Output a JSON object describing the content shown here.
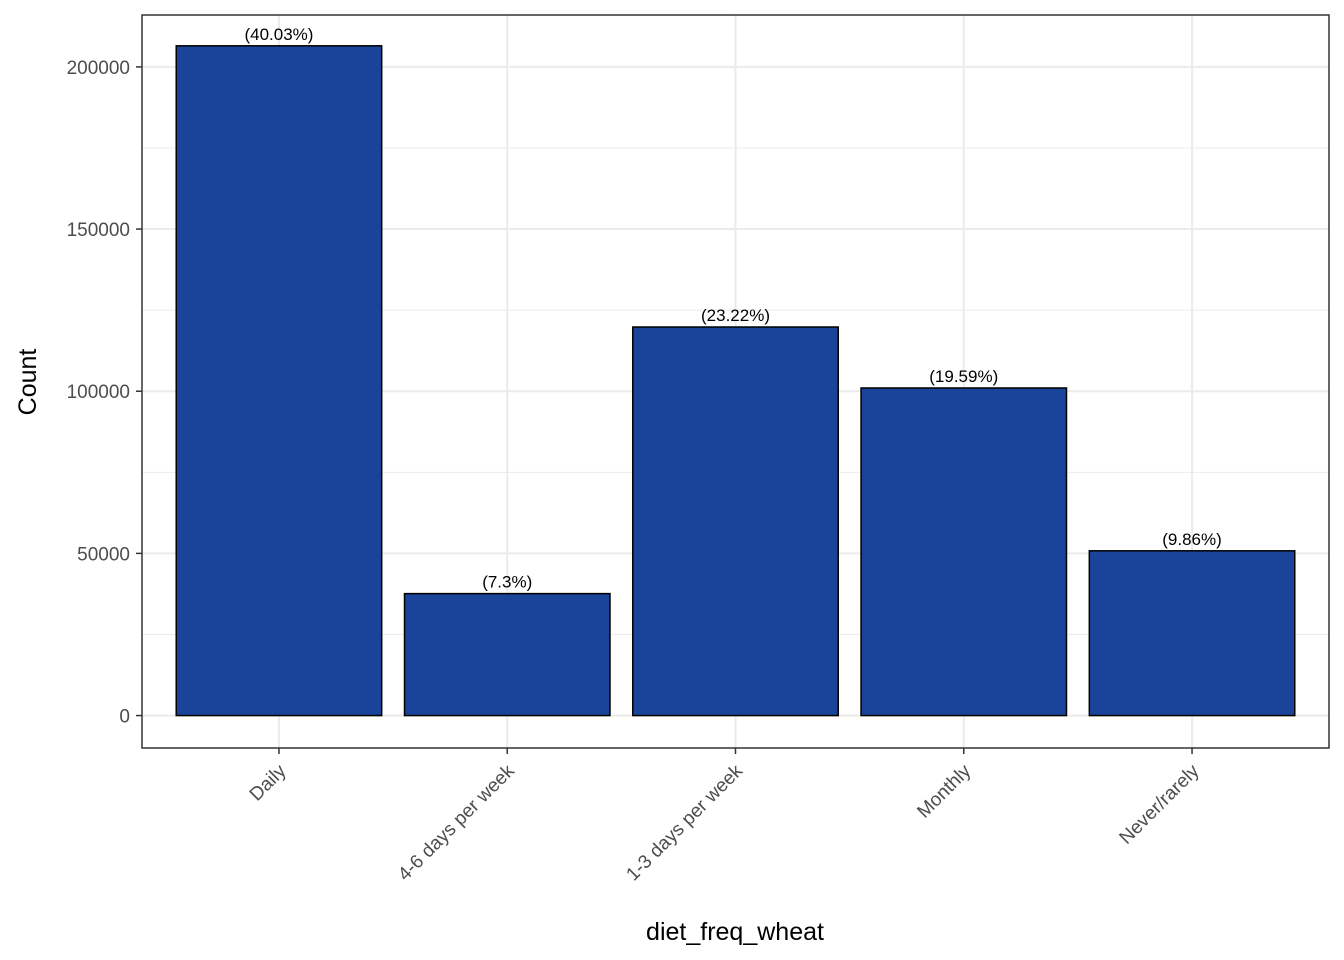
{
  "chart_data": {
    "type": "bar",
    "xlabel": "diet_freq_wheat",
    "ylabel": "Count",
    "categories": [
      "Daily",
      "4-6 days per week",
      "1-3 days per week",
      "Monthly",
      "Never/rarely"
    ],
    "values": [
      206500,
      37600,
      119800,
      101000,
      50800
    ],
    "labels": [
      "(40.03%)",
      "(7.3%)",
      "(23.22%)",
      "(19.59%)",
      "(9.86%)"
    ],
    "ylim": [
      -10000,
      216000
    ],
    "yticks": [
      0,
      50000,
      100000,
      150000,
      200000
    ],
    "ytick_labels": [
      "0",
      "50000",
      "100000",
      "150000",
      "200000"
    ],
    "grid": true,
    "colors": {
      "bar_fill": "#1A449A",
      "bar_stroke": "#000000",
      "grid": "#EBEBEB",
      "panel_border": "#333333"
    }
  }
}
